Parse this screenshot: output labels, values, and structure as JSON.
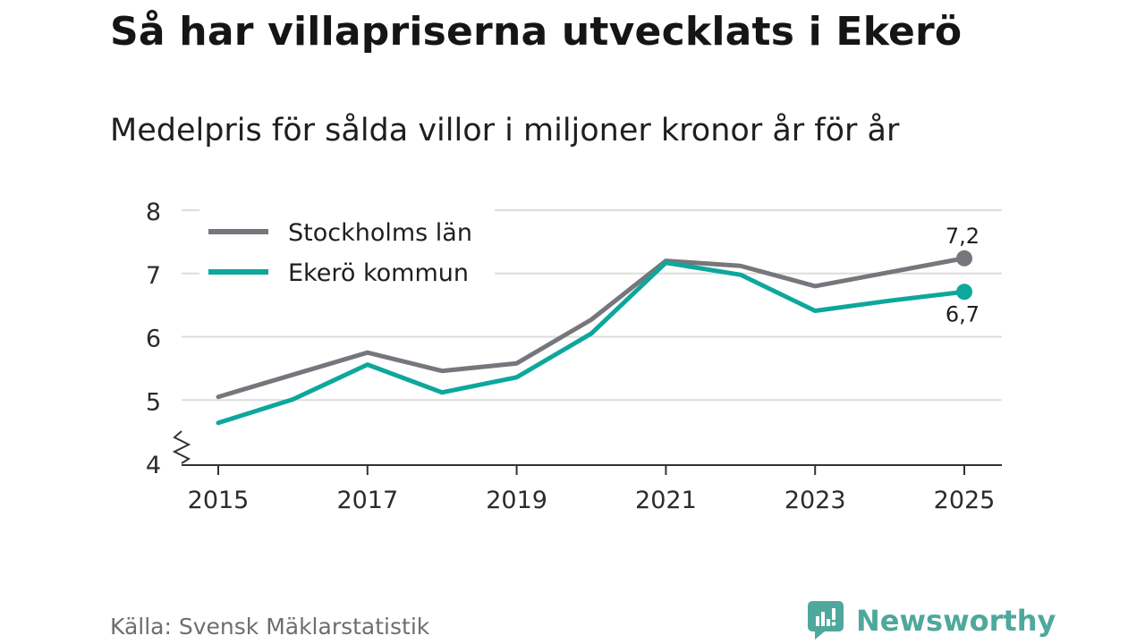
{
  "title": "Så har villapriserna utvecklats i Ekerö",
  "subtitle": "Medelpris för sålda villor i miljoner kronor år för år",
  "source": "Källa: Svensk Mäklarstatistik",
  "brand": "Newsworthy",
  "colors": {
    "stockholm": "#77767c",
    "ekero": "#0da79c",
    "grid": "#dddddd",
    "axis": "#333333",
    "brand": "#4fa89c"
  },
  "icons": {
    "axis_break": "zigzag-break-icon",
    "logo": "newsworthy-logo-icon"
  },
  "chart_data": {
    "type": "line",
    "title": "Så har villapriserna utvecklats i Ekerö",
    "subtitle": "Medelpris för sålda villor i miljoner kronor år för år",
    "xlabel": "",
    "ylabel": "",
    "x": [
      2015,
      2016,
      2017,
      2018,
      2019,
      2020,
      2021,
      2022,
      2023,
      2024,
      2025
    ],
    "xticks": [
      "2015",
      "2017",
      "2019",
      "2021",
      "2023",
      "2025"
    ],
    "yticks": [
      "4",
      "5",
      "6",
      "7",
      "8"
    ],
    "ylim": [
      4,
      8
    ],
    "grid": true,
    "legend_position": "top-left",
    "series": [
      {
        "name": "Stockholms län",
        "color": "#77767c",
        "values": [
          5.05,
          5.4,
          5.75,
          5.46,
          5.58,
          6.27,
          7.2,
          7.12,
          6.8,
          7.02,
          7.24
        ],
        "end_label": "7,2"
      },
      {
        "name": "Ekerö kommun",
        "color": "#0da79c",
        "values": [
          4.64,
          5.01,
          5.56,
          5.12,
          5.36,
          6.05,
          7.17,
          6.98,
          6.41,
          6.57,
          6.71
        ],
        "end_label": "6,7"
      }
    ]
  }
}
